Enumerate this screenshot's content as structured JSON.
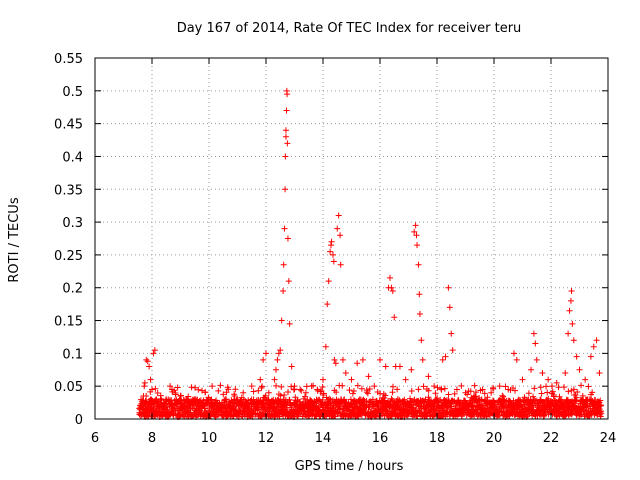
{
  "chart_data": {
    "type": "scatter",
    "title": "Day 167 of 2014, Rate Of TEC Index for receiver teru",
    "xlabel": "GPS time / hours",
    "ylabel": "ROTI / TECUs",
    "xlim": [
      6,
      24
    ],
    "ylim": [
      0,
      0.55
    ],
    "xticks": [
      6,
      8,
      10,
      12,
      14,
      16,
      18,
      20,
      22,
      24
    ],
    "yticks": [
      0,
      0.05,
      0.1,
      0.15,
      0.2,
      0.25,
      0.3,
      0.35,
      0.4,
      0.45,
      0.5,
      0.55
    ],
    "xtick_labels": [
      "6",
      "8",
      "10",
      "12",
      "14",
      "16",
      "18",
      "20",
      "22",
      "24"
    ],
    "ytick_labels": [
      "0",
      "0.05",
      "0.1",
      "0.15",
      "0.2",
      "0.25",
      "0.3",
      "0.35",
      "0.4",
      "0.45",
      "0.5",
      "0.55"
    ],
    "grid": true,
    "marker": "plus",
    "color": "#ff0000",
    "series": [
      {
        "points": [
          [
            7.65,
            0.02
          ],
          [
            7.7,
            0.035
          ],
          [
            7.75,
            0.055
          ],
          [
            7.8,
            0.09
          ],
          [
            7.85,
            0.088
          ],
          [
            7.9,
            0.08
          ],
          [
            7.95,
            0.06
          ],
          [
            8.0,
            0.045
          ],
          [
            8.05,
            0.1
          ],
          [
            8.1,
            0.105
          ],
          [
            8.15,
            0.03
          ],
          [
            8.3,
            0.025
          ],
          [
            8.5,
            0.03
          ],
          [
            8.7,
            0.045
          ],
          [
            8.9,
            0.048
          ],
          [
            9.0,
            0.035
          ],
          [
            9.2,
            0.03
          ],
          [
            9.5,
            0.03
          ],
          [
            9.8,
            0.025
          ],
          [
            10.0,
            0.03
          ],
          [
            10.3,
            0.025
          ],
          [
            10.6,
            0.03
          ],
          [
            10.9,
            0.035
          ],
          [
            11.2,
            0.04
          ],
          [
            11.5,
            0.05
          ],
          [
            11.8,
            0.06
          ],
          [
            11.9,
            0.09
          ],
          [
            12.0,
            0.1
          ],
          [
            12.1,
            0.04
          ],
          [
            12.3,
            0.06
          ],
          [
            12.35,
            0.075
          ],
          [
            12.4,
            0.09
          ],
          [
            12.45,
            0.1
          ],
          [
            12.5,
            0.105
          ],
          [
            12.55,
            0.15
          ],
          [
            12.6,
            0.195
          ],
          [
            12.62,
            0.235
          ],
          [
            12.65,
            0.29
          ],
          [
            12.67,
            0.35
          ],
          [
            12.68,
            0.4
          ],
          [
            12.7,
            0.43
          ],
          [
            12.7,
            0.44
          ],
          [
            12.72,
            0.47
          ],
          [
            12.73,
            0.5
          ],
          [
            12.74,
            0.495
          ],
          [
            12.75,
            0.42
          ],
          [
            12.77,
            0.275
          ],
          [
            12.8,
            0.21
          ],
          [
            12.83,
            0.145
          ],
          [
            12.9,
            0.08
          ],
          [
            13.0,
            0.05
          ],
          [
            13.2,
            0.045
          ],
          [
            13.4,
            0.04
          ],
          [
            13.6,
            0.05
          ],
          [
            13.8,
            0.045
          ],
          [
            14.0,
            0.06
          ],
          [
            14.1,
            0.11
          ],
          [
            14.15,
            0.175
          ],
          [
            14.2,
            0.21
          ],
          [
            14.25,
            0.255
          ],
          [
            14.28,
            0.265
          ],
          [
            14.3,
            0.27
          ],
          [
            14.35,
            0.25
          ],
          [
            14.38,
            0.24
          ],
          [
            14.4,
            0.09
          ],
          [
            14.45,
            0.085
          ],
          [
            14.5,
            0.29
          ],
          [
            14.55,
            0.31
          ],
          [
            14.6,
            0.28
          ],
          [
            14.62,
            0.235
          ],
          [
            14.7,
            0.09
          ],
          [
            14.8,
            0.07
          ],
          [
            15.0,
            0.06
          ],
          [
            15.2,
            0.085
          ],
          [
            15.4,
            0.09
          ],
          [
            15.6,
            0.065
          ],
          [
            15.8,
            0.05
          ],
          [
            16.0,
            0.09
          ],
          [
            16.2,
            0.08
          ],
          [
            16.3,
            0.2
          ],
          [
            16.35,
            0.215
          ],
          [
            16.4,
            0.2
          ],
          [
            16.45,
            0.195
          ],
          [
            16.5,
            0.155
          ],
          [
            16.55,
            0.08
          ],
          [
            16.7,
            0.08
          ],
          [
            16.9,
            0.06
          ],
          [
            17.1,
            0.075
          ],
          [
            17.2,
            0.285
          ],
          [
            17.25,
            0.295
          ],
          [
            17.28,
            0.28
          ],
          [
            17.3,
            0.265
          ],
          [
            17.35,
            0.235
          ],
          [
            17.38,
            0.19
          ],
          [
            17.4,
            0.16
          ],
          [
            17.45,
            0.12
          ],
          [
            17.5,
            0.09
          ],
          [
            17.7,
            0.065
          ],
          [
            17.9,
            0.05
          ],
          [
            18.2,
            0.09
          ],
          [
            18.3,
            0.095
          ],
          [
            18.4,
            0.2
          ],
          [
            18.45,
            0.17
          ],
          [
            18.5,
            0.13
          ],
          [
            18.55,
            0.105
          ],
          [
            18.7,
            0.045
          ],
          [
            19.0,
            0.04
          ],
          [
            19.3,
            0.035
          ],
          [
            19.6,
            0.045
          ],
          [
            19.9,
            0.04
          ],
          [
            20.2,
            0.05
          ],
          [
            20.5,
            0.045
          ],
          [
            20.7,
            0.1
          ],
          [
            20.8,
            0.09
          ],
          [
            21.0,
            0.06
          ],
          [
            21.3,
            0.075
          ],
          [
            21.4,
            0.13
          ],
          [
            21.45,
            0.115
          ],
          [
            21.5,
            0.09
          ],
          [
            21.7,
            0.07
          ],
          [
            21.9,
            0.06
          ],
          [
            22.2,
            0.055
          ],
          [
            22.5,
            0.07
          ],
          [
            22.6,
            0.13
          ],
          [
            22.65,
            0.165
          ],
          [
            22.7,
            0.18
          ],
          [
            22.72,
            0.195
          ],
          [
            22.75,
            0.145
          ],
          [
            22.8,
            0.12
          ],
          [
            22.9,
            0.095
          ],
          [
            23.0,
            0.075
          ],
          [
            23.2,
            0.06
          ],
          [
            23.4,
            0.095
          ],
          [
            23.5,
            0.11
          ],
          [
            23.6,
            0.12
          ],
          [
            23.7,
            0.07
          ]
        ],
        "band": {
          "x_start": 7.55,
          "x_end": 23.75,
          "baseline_min": 0.003,
          "baseline_max": 0.03
        }
      }
    ]
  }
}
